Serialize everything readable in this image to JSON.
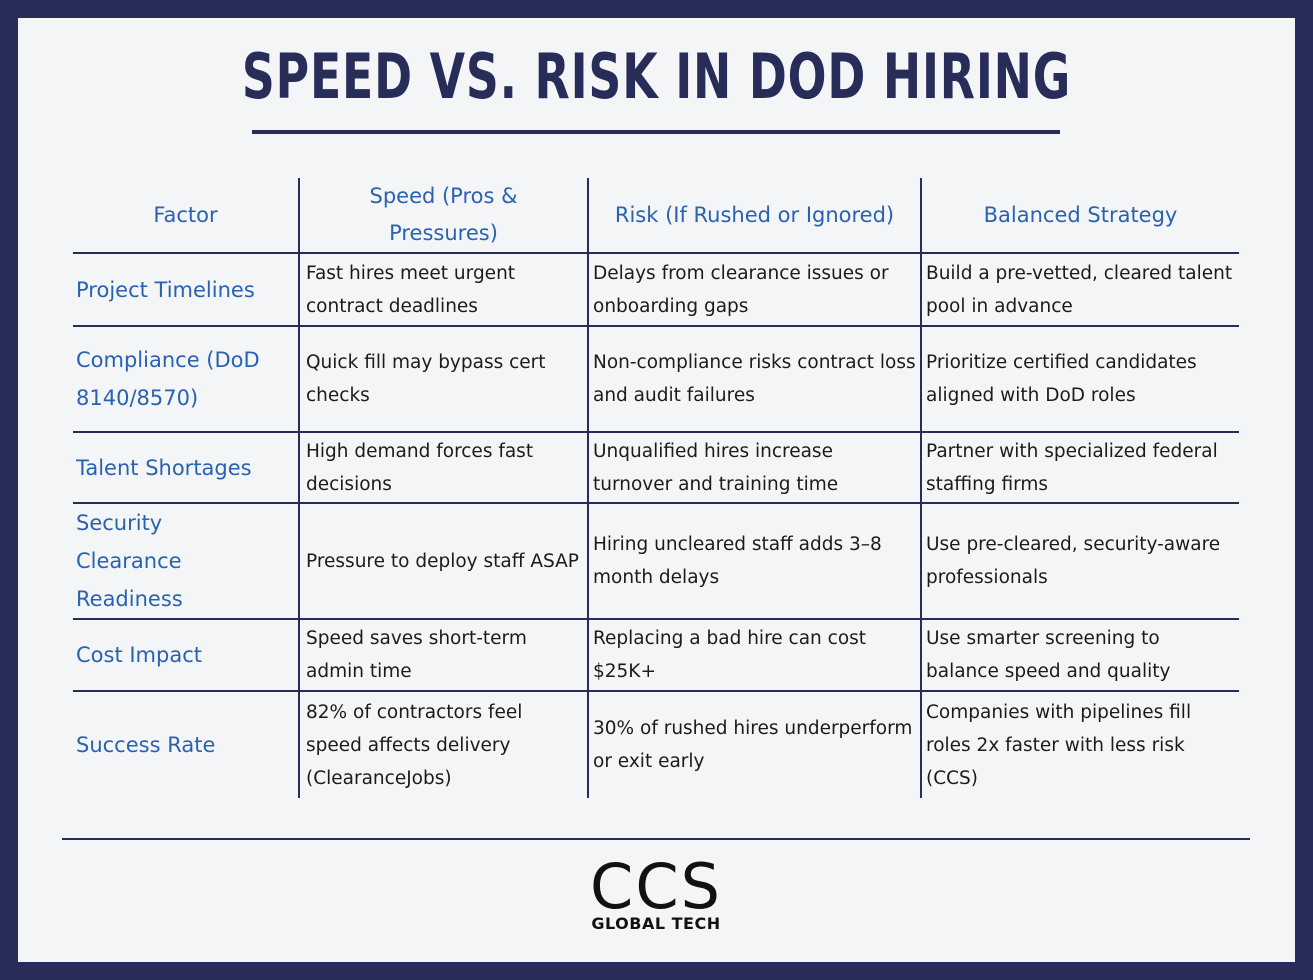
{
  "title": "SPEED VS. RISK IN DOD HIRING",
  "columns": [
    "Factor",
    "Speed (Pros & Pressures)",
    "Risk (If Rushed or Ignored)",
    "Balanced Strategy"
  ],
  "rows": [
    {
      "factor": "Project Timelines",
      "speed": "Fast hires meet urgent contract deadlines",
      "risk": "Delays from clearance issues or onboarding gaps",
      "strategy": "Build a pre-vetted, cleared talent pool in advance"
    },
    {
      "factor": "Compliance (DoD 8140/8570)",
      "speed": "Quick fill may bypass cert checks",
      "risk": "Non-compliance risks contract loss and audit failures",
      "strategy": "Prioritize certified candidates aligned with DoD roles"
    },
    {
      "factor": "Talent Shortages",
      "speed": "High demand forces fast decisions",
      "risk": "Unqualified hires increase turnover and training time",
      "strategy": "Partner with specialized federal staffing firms"
    },
    {
      "factor": "Security Clearance Readiness",
      "speed": "Pressure to deploy staff ASAP",
      "risk": "Hiring uncleared staff adds 3–8 month delays",
      "strategy": "Use pre-cleared, security-aware professionals"
    },
    {
      "factor": "Cost Impact",
      "speed": "Speed saves short-term admin time",
      "risk": "Replacing a bad hire can cost $25K+",
      "strategy": "Use smarter screening to balance speed and quality"
    },
    {
      "factor": "Success Rate",
      "speed": "82% of contractors feel speed affects delivery (ClearanceJobs)",
      "risk": "30% of rushed hires underperform or exit early",
      "strategy": "Companies with pipelines fill roles 2x faster with less risk (CCS)"
    }
  ],
  "logo": {
    "main": "CCS",
    "sub": "GLOBAL TECH"
  },
  "colors": {
    "navy": "#272c59",
    "accent_blue": "#2962b0",
    "background": "#f4f5f7"
  }
}
